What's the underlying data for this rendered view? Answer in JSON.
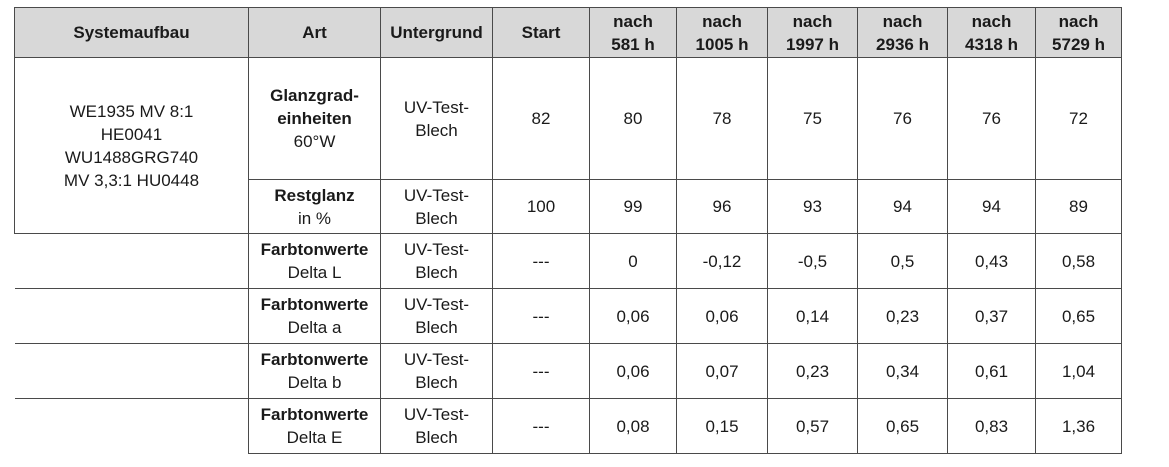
{
  "header": {
    "systemaufbau": "Systemaufbau",
    "art": "Art",
    "untergrund": "Untergrund",
    "start": "Start",
    "time_cols": [
      {
        "l1": "nach",
        "l2": "581 h"
      },
      {
        "l1": "nach",
        "l2": "1005 h"
      },
      {
        "l1": "nach",
        "l2": "1997 h"
      },
      {
        "l1": "nach",
        "l2": "2936 h"
      },
      {
        "l1": "nach",
        "l2": "4318 h"
      },
      {
        "l1": "nach",
        "l2": "5729 h"
      }
    ]
  },
  "system": {
    "lines": [
      "WE1935 MV 8:1",
      "HE0041",
      "WU1488GRG740",
      "MV 3,3:1 HU0448"
    ]
  },
  "rows": [
    {
      "art_bold": "Glanzgrad-\neinheiten",
      "art_plain": "60°W",
      "untergrund": "UV-Test-Blech",
      "start": "82",
      "values": [
        "80",
        "78",
        "75",
        "76",
        "76",
        "72"
      ]
    },
    {
      "art_bold": "Restglanz",
      "art_plain": "in %",
      "untergrund": "UV-Test-Blech",
      "start": "100",
      "values": [
        "99",
        "96",
        "93",
        "94",
        "94",
        "89"
      ]
    },
    {
      "art_bold": "Farbtonwerte",
      "art_plain": "Delta L",
      "untergrund": "UV-Test-Blech",
      "start": "---",
      "values": [
        "0",
        "-0,12",
        "-0,5",
        "0,5",
        "0,43",
        "0,58"
      ]
    },
    {
      "art_bold": "Farbtonwerte",
      "art_plain": "Delta a",
      "untergrund": "UV-Test-Blech",
      "start": "---",
      "values": [
        "0,06",
        "0,06",
        "0,14",
        "0,23",
        "0,37",
        "0,65"
      ]
    },
    {
      "art_bold": "Farbtonwerte",
      "art_plain": "Delta b",
      "untergrund": "UV-Test-Blech",
      "start": "---",
      "values": [
        "0,06",
        "0,07",
        "0,23",
        "0,34",
        "0,61",
        "1,04"
      ]
    },
    {
      "art_bold": "Farbtonwerte",
      "art_plain": "Delta E",
      "untergrund": "UV-Test-Blech",
      "start": "---",
      "values": [
        "0,08",
        "0,15",
        "0,57",
        "0,65",
        "0,83",
        "1,36"
      ]
    }
  ],
  "colors": {
    "header_bg": "#d8d8d8",
    "border": "#4a4a4a",
    "text": "#1a1a1a"
  }
}
